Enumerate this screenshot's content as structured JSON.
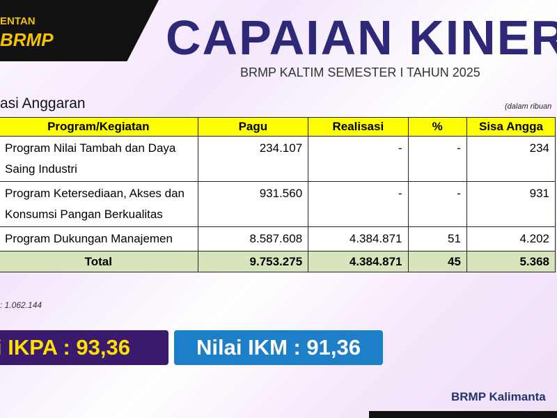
{
  "header": {
    "org_label": "ENTAN",
    "logo": "BRMP",
    "title": "CAPAIAN KINERJ",
    "subtitle": "BRMP KALTIM SEMESTER I TAHUN 2025"
  },
  "section": {
    "title": "asi Anggaran",
    "unit_note": "(dalam ribuan"
  },
  "table": {
    "columns": [
      "Program/Kegiatan",
      "Pagu",
      "Realisasi",
      "%",
      "Sisa Angga"
    ],
    "rows": [
      [
        "Program Nilai Tambah dan Daya Saing Industri",
        "234.107",
        "-",
        "-",
        "234"
      ],
      [
        "Program Ketersediaan, Akses dan Konsumsi Pangan Berkualitas",
        "931.560",
        "-",
        "-",
        "931"
      ],
      [
        "Program Dukungan Manajemen",
        "8.587.608",
        "4.384.871",
        "51",
        "4.202"
      ]
    ],
    "total": [
      "Total",
      "9.753.275",
      "4.384.871",
      "45",
      "5.368"
    ]
  },
  "footnote": ": 1.062.144",
  "badges": [
    "i IKPA : 93,36",
    "Nilai IKM : 91,36"
  ],
  "footer": "BRMP Kalimanta"
}
